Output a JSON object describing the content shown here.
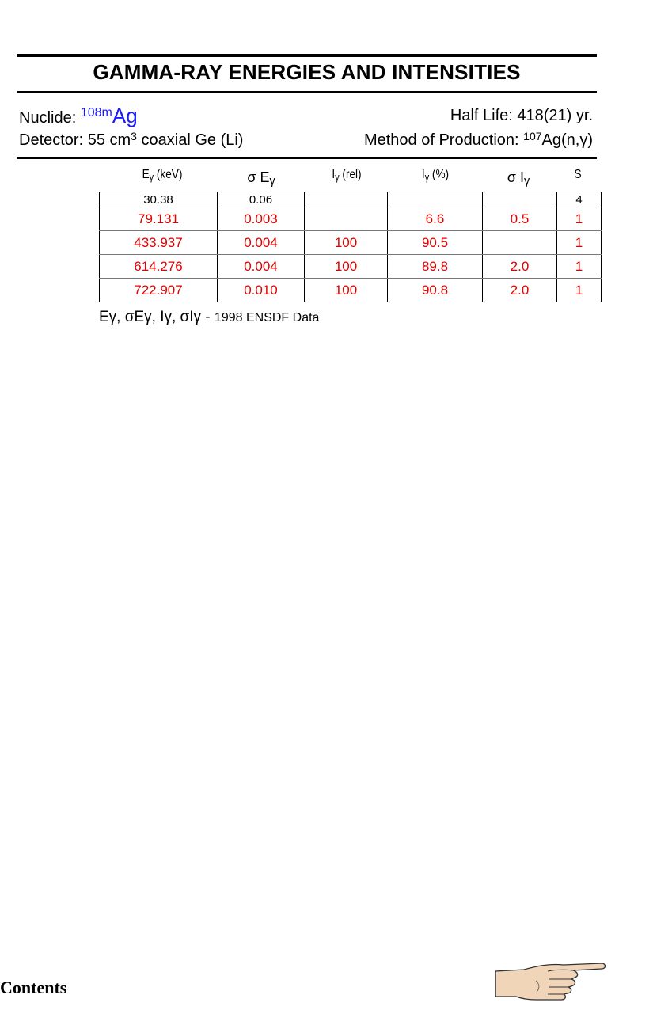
{
  "header": {
    "title": "GAMMA-RAY ENERGIES AND INTENSITIES"
  },
  "info": {
    "nuclide_label": "Nuclide:",
    "nuclide_mass": "108m",
    "nuclide_symbol": "Ag",
    "half_life": "Half Life: 418(21) yr.",
    "detector_prefix": "Detector: 55 cm",
    "detector_sup": "3",
    "detector_suffix": " coaxial Ge (Li)",
    "method_prefix": "Method of Production: ",
    "method_sup": "107",
    "method_reaction": "Ag(n,γ)"
  },
  "table": {
    "columns": [
      {
        "main": "E",
        "sub": "γ",
        "tail": " (keV)"
      },
      {
        "main": "σ E",
        "sub": "γ",
        "tail": ""
      },
      {
        "main": "I",
        "sub": "γ",
        "tail": " (rel)"
      },
      {
        "main": "I",
        "sub": "γ",
        "tail": " (%)"
      },
      {
        "main": "σ I",
        "sub": "γ",
        "tail": ""
      },
      {
        "main": "S",
        "sub": "",
        "tail": ""
      }
    ],
    "rows": [
      [
        "30.38",
        "0.06",
        "",
        "",
        "",
        "4"
      ],
      [
        "79.131",
        "0.003",
        "",
        "6.6",
        "0.5",
        "1"
      ],
      [
        "433.937",
        "0.004",
        "100",
        "90.5",
        "",
        "1"
      ],
      [
        "614.276",
        "0.004",
        "100",
        "89.8",
        "2.0",
        "1"
      ],
      [
        "722.907",
        "0.010",
        "100",
        "90.8",
        "2.0",
        "1"
      ]
    ]
  },
  "footnote": {
    "symbols": "Eγ, σEγ, Iγ, σIγ - ",
    "source": "1998 ENSDF Data"
  },
  "nav": {
    "contents_label": "Contents",
    "next_icon": "pointing-hand-icon"
  },
  "colors": {
    "nuclide": "#1a1aff",
    "data_red": "#e00000"
  }
}
